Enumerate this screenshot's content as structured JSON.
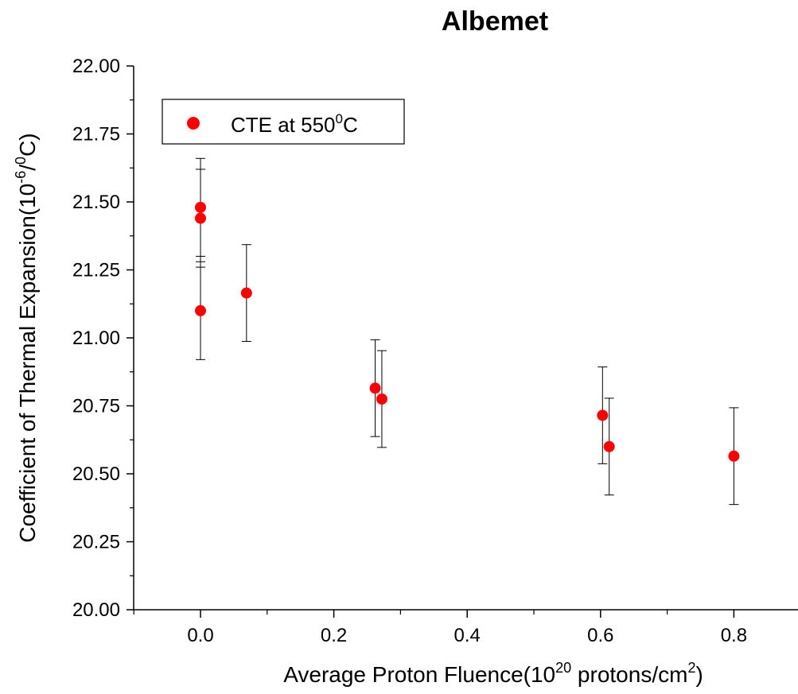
{
  "chart_data": {
    "type": "scatter",
    "title": "Albemet",
    "xlabel": {
      "pre": "Average Proton Fluence(10",
      "sup1": "20",
      "mid": " protons/cm",
      "sup2": "2",
      "post": ")"
    },
    "ylabel": {
      "pre": "Coefficient of Thermal Expansion(10",
      "sup1": "-6",
      "mid": "/",
      "sup2": "0",
      "post": "C)"
    },
    "xlim": [
      -0.1,
      0.9
    ],
    "ylim": [
      20.0,
      22.0
    ],
    "x_ticks": [
      "0.0",
      "0.2",
      "0.4",
      "0.6",
      "0.8"
    ],
    "x_tick_values": [
      0.0,
      0.2,
      0.4,
      0.6,
      0.8
    ],
    "y_ticks": [
      "20.00",
      "20.25",
      "20.50",
      "20.75",
      "21.00",
      "21.25",
      "21.50",
      "21.75",
      "22.00"
    ],
    "y_tick_values": [
      20.0,
      20.25,
      20.5,
      20.75,
      21.0,
      21.25,
      21.5,
      21.75,
      22.0
    ],
    "series": [
      {
        "name": {
          "pre": "CTE at 550",
          "sup": "0",
          "post": "C"
        },
        "color": "#ff0000",
        "points": [
          {
            "x": 0.0,
            "y": 21.48,
            "err": 0.18
          },
          {
            "x": 0.0,
            "y": 21.44,
            "err": 0.18
          },
          {
            "x": 0.0,
            "y": 21.1,
            "err": 0.18
          },
          {
            "x": 0.069,
            "y": 21.165,
            "err": 0.178
          },
          {
            "x": 0.262,
            "y": 20.815,
            "err": 0.178
          },
          {
            "x": 0.272,
            "y": 20.775,
            "err": 0.178
          },
          {
            "x": 0.603,
            "y": 20.715,
            "err": 0.178
          },
          {
            "x": 0.613,
            "y": 20.6,
            "err": 0.178
          },
          {
            "x": 0.8,
            "y": 20.565,
            "err": 0.178
          }
        ]
      }
    ],
    "legend_position": "top-left",
    "grid": false
  }
}
